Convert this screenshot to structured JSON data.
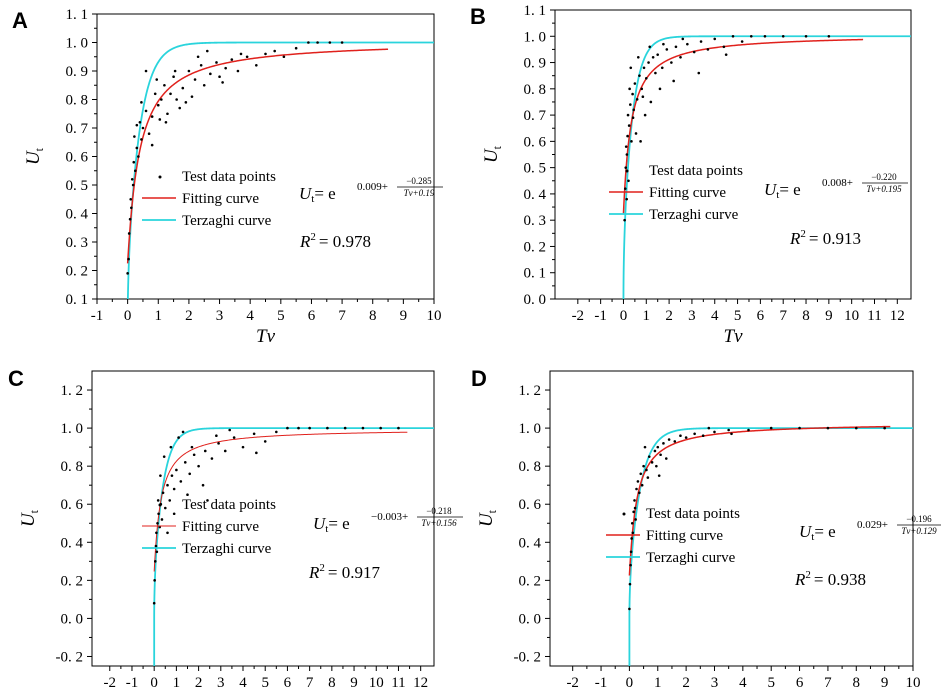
{
  "chart_data": [
    {
      "panel": "A",
      "type": "scatter",
      "xlabel": "Tv",
      "ylabel_main": "U",
      "ylabel_sub": "t",
      "xlim": [
        -1,
        10
      ],
      "ylim": [
        0.1,
        1.1
      ],
      "xticks": [
        -1,
        0,
        1,
        2,
        3,
        4,
        5,
        6,
        7,
        8,
        9,
        10
      ],
      "yticks": [
        0.1,
        0.2,
        0.3,
        0.4,
        0.5,
        0.6,
        0.7,
        0.8,
        0.9,
        1.0,
        1.1
      ],
      "ytick_labels": [
        "0. 1",
        "0. 2",
        "0. 3",
        "0. 4",
        "0. 5",
        "0. 6",
        "0. 7",
        "0. 8",
        "0. 9",
        "1. 0",
        "1. 1"
      ],
      "legend": [
        "Test data points",
        "Fitting curve",
        "Terzaghi curve"
      ],
      "equation": {
        "lhs": "U",
        "lhs_sub": "t",
        "eq": "= e",
        "a": "0.009",
        "num": "−0.285",
        "den": "Tv+0.19"
      },
      "fit": {
        "a": 0.009,
        "b": -0.285,
        "c": 0.19,
        "xmax": 8.5
      },
      "r2_label": "R",
      "r2_value": "= 0.978",
      "points": [
        [
          0.0,
          0.19
        ],
        [
          0.03,
          0.24
        ],
        [
          0.05,
          0.33
        ],
        [
          0.08,
          0.38
        ],
        [
          0.1,
          0.45
        ],
        [
          0.12,
          0.42
        ],
        [
          0.15,
          0.52
        ],
        [
          0.18,
          0.5
        ],
        [
          0.2,
          0.58
        ],
        [
          0.25,
          0.55
        ],
        [
          0.3,
          0.63
        ],
        [
          0.35,
          0.6
        ],
        [
          0.4,
          0.72
        ],
        [
          0.45,
          0.66
        ],
        [
          0.5,
          0.7
        ],
        [
          0.6,
          0.76
        ],
        [
          0.7,
          0.68
        ],
        [
          0.8,
          0.74
        ],
        [
          0.9,
          0.82
        ],
        [
          1.0,
          0.78
        ],
        [
          1.1,
          0.8
        ],
        [
          1.2,
          0.85
        ],
        [
          1.3,
          0.75
        ],
        [
          1.4,
          0.82
        ],
        [
          1.5,
          0.88
        ],
        [
          1.6,
          0.8
        ],
        [
          1.8,
          0.84
        ],
        [
          2.0,
          0.9
        ],
        [
          2.1,
          0.81
        ],
        [
          2.2,
          0.87
        ],
        [
          2.4,
          0.92
        ],
        [
          2.5,
          0.85
        ],
        [
          2.7,
          0.89
        ],
        [
          2.9,
          0.93
        ],
        [
          3.0,
          0.88
        ],
        [
          3.2,
          0.91
        ],
        [
          3.4,
          0.94
        ],
        [
          3.6,
          0.9
        ],
        [
          3.9,
          0.95
        ],
        [
          4.2,
          0.92
        ],
        [
          4.5,
          0.96
        ],
        [
          4.8,
          0.97
        ],
        [
          5.1,
          0.95
        ],
        [
          5.5,
          0.98
        ],
        [
          5.9,
          1.0
        ],
        [
          6.2,
          1.0
        ],
        [
          6.6,
          1.0
        ],
        [
          7.0,
          1.0
        ],
        [
          0.6,
          0.9
        ],
        [
          0.95,
          0.87
        ],
        [
          1.7,
          0.77
        ],
        [
          0.45,
          0.79
        ],
        [
          0.22,
          0.67
        ],
        [
          0.8,
          0.64
        ],
        [
          1.25,
          0.72
        ],
        [
          1.55,
          0.9
        ],
        [
          2.3,
          0.95
        ],
        [
          3.1,
          0.86
        ],
        [
          3.7,
          0.96
        ],
        [
          1.05,
          0.73
        ],
        [
          0.3,
          0.71
        ],
        [
          1.9,
          0.79
        ],
        [
          2.6,
          0.97
        ]
      ]
    },
    {
      "panel": "B",
      "type": "scatter",
      "xlabel": "Tv",
      "ylabel_main": "U",
      "ylabel_sub": "t",
      "xlim": [
        -3,
        12.6
      ],
      "ylim": [
        0.0,
        1.1
      ],
      "xticks": [
        -2,
        -1,
        0,
        1,
        2,
        3,
        4,
        5,
        6,
        7,
        8,
        9,
        10,
        11,
        12
      ],
      "yticks": [
        0.0,
        0.1,
        0.2,
        0.3,
        0.4,
        0.5,
        0.6,
        0.7,
        0.8,
        0.9,
        1.0,
        1.1
      ],
      "ytick_labels": [
        "0. 0",
        "0. 1",
        "0. 2",
        "0. 3",
        "0. 4",
        "0. 5",
        "0. 6",
        "0. 7",
        "0. 8",
        "0. 9",
        "1. 0",
        "1. 1"
      ],
      "legend": [
        "Test data points",
        "Fitting curve",
        "Terzaghi curve"
      ],
      "equation": {
        "lhs": "U",
        "lhs_sub": "t",
        "eq": "= e",
        "a": "0.008",
        "num": "−0.220",
        "den": "Tv+0.195"
      },
      "fit": {
        "a": 0.008,
        "b": -0.22,
        "c": 0.195,
        "xmax": 10.5
      },
      "r2_label": "R",
      "r2_value": "= 0.913",
      "points": [
        [
          0.05,
          0.3
        ],
        [
          0.08,
          0.42
        ],
        [
          0.1,
          0.5
        ],
        [
          0.12,
          0.58
        ],
        [
          0.15,
          0.55
        ],
        [
          0.18,
          0.62
        ],
        [
          0.2,
          0.7
        ],
        [
          0.25,
          0.66
        ],
        [
          0.3,
          0.74
        ],
        [
          0.35,
          0.6
        ],
        [
          0.4,
          0.78
        ],
        [
          0.45,
          0.72
        ],
        [
          0.5,
          0.82
        ],
        [
          0.6,
          0.76
        ],
        [
          0.7,
          0.85
        ],
        [
          0.8,
          0.8
        ],
        [
          0.9,
          0.88
        ],
        [
          1.0,
          0.84
        ],
        [
          1.1,
          0.9
        ],
        [
          1.2,
          0.75
        ],
        [
          1.3,
          0.92
        ],
        [
          1.4,
          0.86
        ],
        [
          1.5,
          0.93
        ],
        [
          1.7,
          0.88
        ],
        [
          1.9,
          0.95
        ],
        [
          2.1,
          0.9
        ],
        [
          2.3,
          0.96
        ],
        [
          2.5,
          0.92
        ],
        [
          2.8,
          0.97
        ],
        [
          3.1,
          0.94
        ],
        [
          3.4,
          0.98
        ],
        [
          3.7,
          0.95
        ],
        [
          4.0,
          0.99
        ],
        [
          4.4,
          0.96
        ],
        [
          4.8,
          1.0
        ],
        [
          5.2,
          0.98
        ],
        [
          5.6,
          1.0
        ],
        [
          6.2,
          1.0
        ],
        [
          7.0,
          1.0
        ],
        [
          8.0,
          1.0
        ],
        [
          9.0,
          1.0
        ],
        [
          0.22,
          0.45
        ],
        [
          0.55,
          0.63
        ],
        [
          0.95,
          0.7
        ],
        [
          1.6,
          0.8
        ],
        [
          2.2,
          0.83
        ],
        [
          0.32,
          0.88
        ],
        [
          0.65,
          0.92
        ],
        [
          1.15,
          0.96
        ],
        [
          2.6,
          0.99
        ],
        [
          3.3,
          0.86
        ],
        [
          0.14,
          0.38
        ],
        [
          0.42,
          0.69
        ],
        [
          0.85,
          0.77
        ],
        [
          1.75,
          0.97
        ],
        [
          0.27,
          0.8
        ],
        [
          4.5,
          0.93
        ],
        [
          0.75,
          0.6
        ]
      ]
    },
    {
      "panel": "C",
      "type": "scatter",
      "xlabel": "Tv",
      "ylabel_main": "U",
      "ylabel_sub": "t",
      "xlim": [
        -2.8,
        12.6
      ],
      "ylim": [
        -0.25,
        1.3
      ],
      "xticks": [
        -2,
        -1,
        0,
        1,
        2,
        3,
        4,
        5,
        6,
        7,
        8,
        9,
        10,
        11,
        12
      ],
      "yticks": [
        -0.2,
        0.0,
        0.2,
        0.4,
        0.6,
        0.8,
        1.0,
        1.2
      ],
      "ytick_labels": [
        "-0. 2",
        "0. 0",
        "0. 2",
        "0. 4",
        "0. 6",
        "0. 8",
        "1. 0",
        "1. 2"
      ],
      "legend": [
        "Test data points",
        "Fitting curve",
        "Terzaghi curve"
      ],
      "equation": {
        "lhs": "U",
        "lhs_sub": "t",
        "eq": "= e",
        "a": "−0.003",
        "num": "−0.218",
        "den": "Tv+0.156"
      },
      "fit": {
        "a": -0.003,
        "b": -0.218,
        "c": 0.156,
        "xmax": 11.4
      },
      "r2_label": "R",
      "r2_value": "= 0.917",
      "points": [
        [
          0.0,
          0.08
        ],
        [
          0.02,
          0.2
        ],
        [
          0.05,
          0.3
        ],
        [
          0.08,
          0.38
        ],
        [
          0.1,
          0.45
        ],
        [
          0.12,
          0.35
        ],
        [
          0.15,
          0.5
        ],
        [
          0.2,
          0.55
        ],
        [
          0.25,
          0.48
        ],
        [
          0.3,
          0.6
        ],
        [
          0.35,
          0.52
        ],
        [
          0.4,
          0.66
        ],
        [
          0.5,
          0.58
        ],
        [
          0.6,
          0.7
        ],
        [
          0.7,
          0.62
        ],
        [
          0.8,
          0.75
        ],
        [
          0.9,
          0.68
        ],
        [
          1.0,
          0.78
        ],
        [
          1.2,
          0.72
        ],
        [
          1.4,
          0.82
        ],
        [
          1.6,
          0.76
        ],
        [
          1.8,
          0.86
        ],
        [
          2.0,
          0.8
        ],
        [
          2.3,
          0.88
        ],
        [
          2.6,
          0.84
        ],
        [
          2.9,
          0.92
        ],
        [
          3.2,
          0.88
        ],
        [
          3.6,
          0.95
        ],
        [
          4.0,
          0.9
        ],
        [
          4.5,
          0.97
        ],
        [
          5.0,
          0.93
        ],
        [
          5.5,
          0.98
        ],
        [
          6.0,
          1.0
        ],
        [
          6.5,
          1.0
        ],
        [
          7.0,
          1.0
        ],
        [
          7.8,
          1.0
        ],
        [
          8.6,
          1.0
        ],
        [
          9.4,
          1.0
        ],
        [
          10.2,
          1.0
        ],
        [
          11.0,
          1.0
        ],
        [
          0.45,
          0.85
        ],
        [
          0.75,
          0.9
        ],
        [
          1.1,
          0.95
        ],
        [
          1.5,
          0.65
        ],
        [
          2.2,
          0.7
        ],
        [
          0.28,
          0.75
        ],
        [
          0.6,
          0.45
        ],
        [
          0.9,
          0.55
        ],
        [
          1.3,
          0.98
        ],
        [
          2.8,
          0.96
        ],
        [
          3.4,
          0.99
        ],
        [
          0.18,
          0.62
        ],
        [
          1.7,
          0.9
        ],
        [
          2.4,
          0.62
        ],
        [
          4.6,
          0.87
        ]
      ]
    },
    {
      "panel": "D",
      "type": "scatter",
      "xlabel": "Tv",
      "ylabel_main": "U",
      "ylabel_sub": "t",
      "xlim": [
        -2.8,
        10
      ],
      "ylim": [
        -0.25,
        1.3
      ],
      "xticks": [
        -2,
        -1,
        0,
        1,
        2,
        3,
        4,
        5,
        6,
        7,
        8,
        9,
        10
      ],
      "yticks": [
        -0.2,
        0.0,
        0.2,
        0.4,
        0.6,
        0.8,
        1.0,
        1.2
      ],
      "ytick_labels": [
        "-0. 2",
        "0. 0",
        "0. 2",
        "0. 4",
        "0. 6",
        "0. 8",
        "1. 0",
        "1. 2"
      ],
      "legend": [
        "Test data points",
        "Fitting curve",
        "Terzaghi curve"
      ],
      "equation": {
        "lhs": "U",
        "lhs_sub": "t",
        "eq": "= e",
        "a": "0.029",
        "num": "−0.196",
        "den": "Tv+0.129"
      },
      "fit": {
        "a": 0.029,
        "b": -0.196,
        "c": 0.129,
        "xmax": 9.2
      },
      "r2_label": "R",
      "r2_value": "= 0.938",
      "points": [
        [
          0.0,
          0.05
        ],
        [
          0.02,
          0.18
        ],
        [
          0.04,
          0.28
        ],
        [
          0.06,
          0.35
        ],
        [
          0.08,
          0.42
        ],
        [
          0.1,
          0.5
        ],
        [
          0.12,
          0.45
        ],
        [
          0.15,
          0.56
        ],
        [
          0.18,
          0.62
        ],
        [
          0.2,
          0.58
        ],
        [
          0.25,
          0.68
        ],
        [
          0.3,
          0.72
        ],
        [
          0.35,
          0.66
        ],
        [
          0.4,
          0.76
        ],
        [
          0.5,
          0.8
        ],
        [
          0.6,
          0.78
        ],
        [
          0.7,
          0.85
        ],
        [
          0.8,
          0.82
        ],
        [
          0.9,
          0.88
        ],
        [
          1.0,
          0.9
        ],
        [
          1.1,
          0.86
        ],
        [
          1.2,
          0.92
        ],
        [
          1.4,
          0.94
        ],
        [
          1.6,
          0.93
        ],
        [
          1.8,
          0.96
        ],
        [
          2.0,
          0.95
        ],
        [
          2.3,
          0.97
        ],
        [
          2.6,
          0.96
        ],
        [
          3.0,
          0.98
        ],
        [
          3.5,
          0.99
        ],
        [
          3.6,
          0.97
        ],
        [
          4.2,
          0.99
        ],
        [
          5.0,
          1.0
        ],
        [
          6.0,
          1.0
        ],
        [
          7.0,
          1.0
        ],
        [
          8.0,
          1.0
        ],
        [
          9.0,
          1.0
        ],
        [
          0.45,
          0.7
        ],
        [
          0.65,
          0.74
        ],
        [
          0.95,
          0.8
        ],
        [
          1.3,
          0.84
        ],
        [
          0.22,
          0.52
        ],
        [
          0.55,
          0.9
        ],
        [
          1.05,
          0.75
        ],
        [
          2.8,
          1.0
        ]
      ]
    }
  ]
}
